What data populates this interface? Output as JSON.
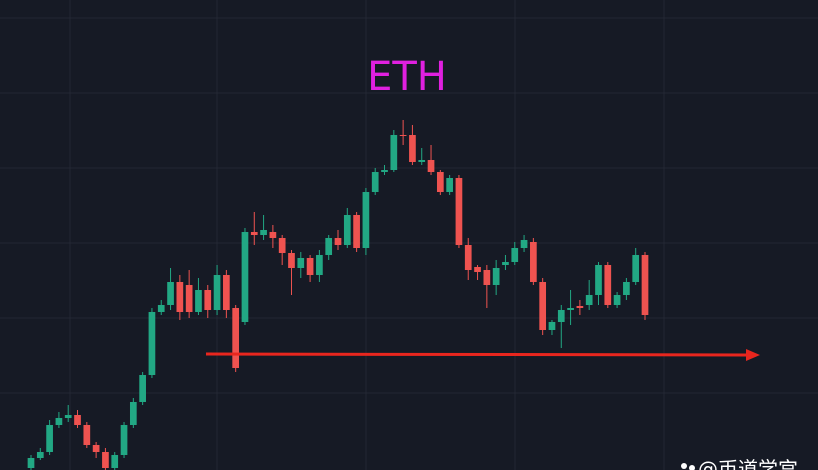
{
  "chart_data": {
    "type": "candlestick",
    "title": "ETH",
    "watermark": "@币道学宫",
    "categories": [
      null,
      null,
      null,
      null,
      null,
      null,
      null,
      null,
      null,
      null,
      null,
      null,
      null,
      null,
      null,
      null,
      null,
      null,
      null,
      null,
      null,
      null,
      null,
      null,
      null,
      null,
      null,
      null,
      null,
      null,
      null,
      null,
      null,
      null,
      null,
      null,
      null,
      null,
      null,
      null,
      null,
      null,
      null,
      null,
      null,
      null,
      null,
      null,
      null,
      null,
      null,
      null,
      null,
      null,
      null,
      null,
      null,
      null,
      null,
      null,
      null,
      null,
      null,
      null,
      null,
      null,
      null
    ],
    "open": [
      2,
      12,
      18,
      45,
      52,
      55,
      45,
      25,
      18,
      2,
      15,
      45,
      68,
      95,
      158,
      165,
      188,
      185,
      158,
      180,
      160,
      195,
      162,
      148,
      238,
      235,
      238,
      232,
      217,
      202,
      212,
      195,
      215,
      232,
      225,
      255,
      222,
      278,
      298,
      300,
      335,
      335,
      308,
      310,
      298,
      278,
      292,
      225,
      203,
      200,
      185,
      205,
      208,
      222,
      228,
      188,
      140,
      148,
      160,
      164,
      165,
      175,
      205,
      165,
      175,
      188,
      215
    ],
    "high": [
      15,
      22,
      50,
      58,
      65,
      60,
      48,
      28,
      22,
      18,
      48,
      72,
      98,
      162,
      170,
      202,
      195,
      200,
      192,
      185,
      205,
      200,
      165,
      242,
      258,
      255,
      245,
      235,
      220,
      218,
      215,
      220,
      235,
      240,
      262,
      258,
      282,
      302,
      305,
      340,
      350,
      345,
      322,
      325,
      300,
      295,
      295,
      232,
      205,
      205,
      210,
      215,
      228,
      235,
      232,
      192,
      150,
      165,
      180,
      170,
      190,
      208,
      208,
      178,
      192,
      222,
      218
    ],
    "low": [
      0,
      10,
      15,
      42,
      48,
      42,
      22,
      12,
      0,
      0,
      12,
      42,
      65,
      92,
      155,
      160,
      150,
      152,
      155,
      152,
      155,
      152,
      98,
      145,
      225,
      230,
      222,
      205,
      175,
      192,
      188,
      188,
      210,
      220,
      222,
      218,
      215,
      275,
      295,
      298,
      325,
      305,
      305,
      295,
      275,
      275,
      222,
      190,
      190,
      162,
      175,
      200,
      205,
      218,
      185,
      135,
      135,
      122,
      145,
      155,
      160,
      165,
      162,
      162,
      170,
      185,
      150
    ],
    "close": [
      12,
      18,
      45,
      52,
      55,
      45,
      25,
      18,
      2,
      15,
      45,
      68,
      95,
      158,
      165,
      188,
      158,
      158,
      180,
      160,
      195,
      160,
      102,
      238,
      235,
      240,
      232,
      217,
      202,
      212,
      195,
      215,
      232,
      225,
      255,
      222,
      278,
      298,
      300,
      335,
      334,
      308,
      310,
      298,
      278,
      292,
      225,
      200,
      198,
      185,
      202,
      208,
      222,
      230,
      188,
      140,
      148,
      160,
      162,
      162,
      175,
      205,
      165,
      175,
      188,
      215,
      155
    ],
    "up_color": "#22a884",
    "down_color": "#ef5350",
    "ylim": [
      0,
      470
    ]
  }
}
